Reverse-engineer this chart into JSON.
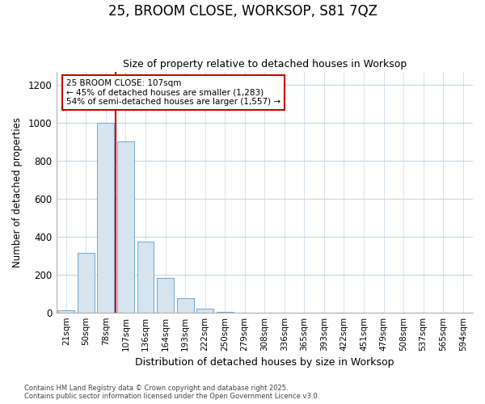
{
  "title_line1": "25, BROOM CLOSE, WORKSOP, S81 7QZ",
  "title_line2": "Size of property relative to detached houses in Worksop",
  "xlabel": "Distribution of detached houses by size in Worksop",
  "ylabel": "Number of detached properties",
  "categories": [
    "21sqm",
    "50sqm",
    "78sqm",
    "107sqm",
    "136sqm",
    "164sqm",
    "193sqm",
    "222sqm",
    "250sqm",
    "279sqm",
    "308sqm",
    "336sqm",
    "365sqm",
    "393sqm",
    "422sqm",
    "451sqm",
    "479sqm",
    "508sqm",
    "537sqm",
    "565sqm",
    "594sqm"
  ],
  "values": [
    10,
    315,
    1000,
    900,
    375,
    180,
    75,
    20,
    2,
    0,
    0,
    0,
    0,
    0,
    0,
    0,
    0,
    0,
    0,
    0,
    0
  ],
  "bar_color": "#d6e4f0",
  "bar_edge_color": "#7bafd4",
  "vline_color": "#cc0000",
  "annotation_text": "25 BROOM CLOSE: 107sqm\n← 45% of detached houses are smaller (1,283)\n54% of semi-detached houses are larger (1,557) →",
  "annotation_box_color": "white",
  "annotation_box_edge_color": "#cc0000",
  "ylim": [
    0,
    1270
  ],
  "yticks": [
    0,
    200,
    400,
    600,
    800,
    1000,
    1200
  ],
  "footer_line1": "Contains HM Land Registry data © Crown copyright and database right 2025.",
  "footer_line2": "Contains public sector information licensed under the Open Government Licence v3.0.",
  "bg_color": "#ffffff",
  "plot_bg_color": "#ffffff",
  "grid_color": "#c8d8e8"
}
